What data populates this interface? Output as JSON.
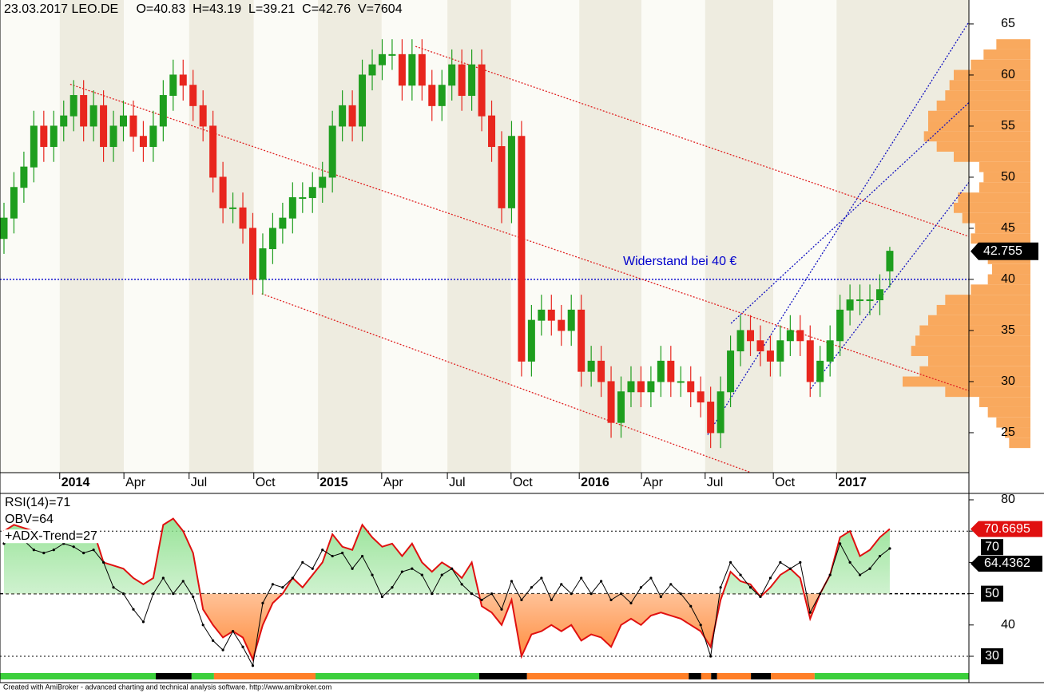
{
  "chart_data": [
    {
      "type": "candlestick",
      "title": "23.03.2017 LEO.DE     O=40.83  H=43.19  L=39.21  C=42.76  V=7604",
      "x": [
        0,
        2,
        4,
        6,
        8,
        10,
        12,
        14,
        16,
        18,
        20,
        22,
        24,
        26,
        28,
        30,
        32,
        34,
        36,
        38,
        40,
        42,
        44,
        46,
        48,
        50,
        52,
        54,
        56,
        58,
        60,
        62,
        64,
        66,
        68,
        70,
        72,
        74,
        76,
        78,
        80,
        82,
        84,
        86,
        88,
        90,
        92,
        94,
        96,
        98,
        100,
        102,
        104,
        106,
        108,
        110,
        112,
        114,
        116,
        118,
        120,
        122,
        124,
        126,
        128,
        130,
        132,
        134,
        136,
        138,
        140,
        142,
        144,
        146,
        148,
        150,
        152,
        154,
        156,
        158,
        160,
        162,
        164,
        166,
        168,
        170,
        172,
        174,
        176,
        178
      ],
      "open": [
        44,
        46,
        49,
        51,
        55,
        53,
        55,
        56,
        58,
        55,
        57,
        53,
        55,
        56,
        54,
        53,
        55,
        58,
        60,
        59,
        57,
        55,
        50,
        47,
        47,
        45,
        40,
        43,
        45,
        46,
        48,
        48,
        49,
        50,
        55,
        57,
        55,
        60,
        61,
        62,
        62,
        59,
        62,
        59,
        57,
        59,
        61,
        58,
        61,
        56,
        53,
        47,
        54,
        32,
        36,
        37,
        36,
        35,
        37,
        31,
        32,
        30,
        26,
        29,
        30,
        29,
        30,
        32,
        30,
        30,
        29,
        28,
        25,
        29,
        33,
        35,
        34,
        33,
        32,
        34,
        35,
        34,
        30,
        32,
        34,
        37,
        38,
        38,
        38,
        40.83
      ],
      "high": [
        47.5,
        50.5,
        52.5,
        56.5,
        56.5,
        56.5,
        57.5,
        59.5,
        59.5,
        58.5,
        58.5,
        56.5,
        57.5,
        57.5,
        55.5,
        56.5,
        59.5,
        61.5,
        61.5,
        60.5,
        58.5,
        56.5,
        51.5,
        48.5,
        48.5,
        46.5,
        44.5,
        46.5,
        47.5,
        49.5,
        49.5,
        50.5,
        51.5,
        56.5,
        58.5,
        58.5,
        61.5,
        62.5,
        63.5,
        63.5,
        63.5,
        63.5,
        63.5,
        60.5,
        60.5,
        62.5,
        62.5,
        62.5,
        62.5,
        57.5,
        54.5,
        55.5,
        55.5,
        37.5,
        38.5,
        38.5,
        37.5,
        38.5,
        38.5,
        33.5,
        33.5,
        31.5,
        30.5,
        31.5,
        31.5,
        31.5,
        33.5,
        33.5,
        31.5,
        31.5,
        30.5,
        29.5,
        30.5,
        34.5,
        36.5,
        36.5,
        35.5,
        34.5,
        35.5,
        36.5,
        36.5,
        35.5,
        33.5,
        35.5,
        38.5,
        39.5,
        39.5,
        39.5,
        40.5,
        43.19
      ],
      "low": [
        42.5,
        44.5,
        47.5,
        49.5,
        51.5,
        51.5,
        53.5,
        54.5,
        53.5,
        53.5,
        51.5,
        51.5,
        53.5,
        52.5,
        51.5,
        51.5,
        53.5,
        56.5,
        57.5,
        55.5,
        53.5,
        48.5,
        45.5,
        45.5,
        43.5,
        38.5,
        38.5,
        41.5,
        43.5,
        44.5,
        46.5,
        46.5,
        47.5,
        48.5,
        53.5,
        53.5,
        53.5,
        58.5,
        59.5,
        60.5,
        57.5,
        57.5,
        57.5,
        55.5,
        55.5,
        57.5,
        56.5,
        56.5,
        54.5,
        51.5,
        45.5,
        45.5,
        30.5,
        30.5,
        34.5,
        34.5,
        33.5,
        33.5,
        29.5,
        29.5,
        28.5,
        24.5,
        24.5,
        27.5,
        27.5,
        27.5,
        28.5,
        28.5,
        28.5,
        27.5,
        26.5,
        23.5,
        23.5,
        27.5,
        31.5,
        32.5,
        31.5,
        30.5,
        30.5,
        32.5,
        32.5,
        28.5,
        28.5,
        30.5,
        32.5,
        35.5,
        36.5,
        36.5,
        36.5,
        39.21
      ],
      "close": [
        46,
        49,
        51,
        55,
        53,
        55,
        56,
        58,
        55,
        57,
        53,
        55,
        56,
        54,
        53,
        55,
        58,
        60,
        59,
        57,
        55,
        50,
        47,
        47,
        45,
        40,
        43,
        45,
        46,
        48,
        48,
        49,
        50,
        55,
        57,
        55,
        60,
        61,
        62,
        62,
        59,
        62,
        59,
        57,
        59,
        61,
        58,
        61,
        56,
        53,
        47,
        54,
        32,
        36,
        37,
        36,
        35,
        37,
        31,
        32,
        30,
        26,
        29,
        30,
        29,
        30,
        32,
        30,
        30,
        29,
        28,
        25,
        29,
        33,
        35,
        34,
        33,
        32,
        34,
        35,
        34,
        30,
        32,
        34,
        37,
        38,
        38,
        38,
        39,
        42.76
      ],
      "up_color": "#1e9e1e",
      "down_color": "#e8261e",
      "xlim": [
        -0.8,
        193.9
      ],
      "ylim": [
        21.09,
        67.34
      ],
      "xticks": [
        {
          "value": 11.2,
          "label": "2014"
        },
        {
          "value": 24.1,
          "label": "Apr"
        },
        {
          "value": 37.2,
          "label": "Jul"
        },
        {
          "value": 50.2,
          "label": "Oct"
        },
        {
          "value": 63.1,
          "label": "2015"
        },
        {
          "value": 75.9,
          "label": "Apr"
        },
        {
          "value": 89.1,
          "label": "Jul"
        },
        {
          "value": 101.9,
          "label": "Oct"
        },
        {
          "value": 115.6,
          "label": "2016"
        },
        {
          "value": 128.1,
          "label": "Apr"
        },
        {
          "value": 140.9,
          "label": "Jul"
        },
        {
          "value": 154.6,
          "label": "Oct"
        },
        {
          "value": 167.3,
          "label": "2017"
        }
      ],
      "bold_xticks": [
        0,
        4,
        8,
        12
      ],
      "yticks": [
        25,
        30,
        35,
        40,
        45,
        50,
        55,
        60,
        65
      ],
      "last_value": 42.755,
      "hlines": [
        {
          "value": 40,
          "color": "#0000cc"
        }
      ],
      "annotation": "Widerstand bei 40 €",
      "trend_lines": [
        {
          "x": [
            13.3,
            193.9
          ],
          "y": [
            59.1,
            29.1
          ],
          "color": "#e02020"
        },
        {
          "x": [
            82.7,
            193.9
          ],
          "y": [
            62.8,
            44.2
          ],
          "color": "#e02020"
        },
        {
          "x": [
            51.8,
            150.1
          ],
          "y": [
            38.6,
            21.1
          ],
          "color": "#e02020"
        },
        {
          "x": [
            141.4,
            193.9
          ],
          "y": [
            24.8,
            65.2
          ],
          "color": "#1010c0"
        },
        {
          "x": [
            146.1,
            193.9
          ],
          "y": [
            35.7,
            57.3
          ],
          "color": "#1010c0"
        },
        {
          "x": [
            162.1,
            193.9
          ],
          "y": [
            29.3,
            49.5
          ],
          "color": "#1010c0"
        }
      ],
      "volume_profile": {
        "color": "#f9a95e",
        "prices": [
          24,
          25,
          26,
          27,
          28,
          29,
          30,
          31,
          32,
          33,
          34,
          35,
          36,
          37,
          38,
          39,
          40,
          41,
          42,
          43,
          44,
          45,
          46,
          47,
          48,
          49,
          50,
          51,
          52,
          53,
          54,
          55,
          56,
          57,
          58,
          59,
          60,
          61,
          62,
          63
        ],
        "values": [
          25,
          30,
          40,
          50,
          60,
          100,
          150,
          130,
          120,
          140,
          135,
          130,
          120,
          110,
          100,
          70,
          50,
          45,
          50,
          60,
          70,
          65,
          80,
          90,
          85,
          60,
          55,
          60,
          90,
          110,
          125,
          120,
          120,
          110,
          100,
          95,
          90,
          70,
          55,
          40
        ]
      }
    },
    {
      "type": "line",
      "legend": [
        "RSI(14)=71",
        "OBV=64",
        "+ADX-Trend=27"
      ],
      "x": [
        0,
        2,
        4,
        6,
        8,
        10,
        12,
        14,
        16,
        18,
        20,
        22,
        24,
        26,
        28,
        30,
        32,
        34,
        36,
        38,
        40,
        42,
        44,
        46,
        48,
        50,
        52,
        54,
        56,
        58,
        60,
        62,
        64,
        66,
        68,
        70,
        72,
        74,
        76,
        78,
        80,
        82,
        84,
        86,
        88,
        90,
        92,
        94,
        96,
        98,
        100,
        102,
        104,
        106,
        108,
        110,
        112,
        114,
        116,
        118,
        120,
        122,
        124,
        126,
        128,
        130,
        132,
        134,
        136,
        138,
        140,
        142,
        144,
        146,
        148,
        150,
        152,
        154,
        156,
        158,
        160,
        162,
        164,
        166,
        168,
        170,
        172,
        174,
        176,
        178
      ],
      "series": [
        {
          "name": "RSI",
          "color": "#e01010",
          "last_value": 70.6695,
          "values": [
            70,
            72,
            71,
            70,
            69,
            68,
            68,
            67,
            70,
            70,
            60,
            59,
            58,
            55,
            53,
            55,
            72,
            74,
            70,
            63,
            45,
            40,
            36,
            38,
            36,
            29,
            40,
            47,
            50,
            55,
            52,
            56,
            60,
            69,
            65,
            64,
            72,
            68,
            65,
            66,
            62,
            66,
            60,
            57,
            60,
            58,
            55,
            60,
            46,
            44,
            40,
            48,
            30,
            37,
            38,
            40,
            38,
            40,
            35,
            37,
            36,
            33,
            40,
            42,
            40,
            43,
            44,
            43,
            42,
            40,
            38,
            33,
            48,
            57,
            54,
            53,
            49,
            52,
            56,
            58,
            55,
            42,
            50,
            56,
            68,
            70,
            62,
            64,
            68,
            70.67
          ]
        },
        {
          "name": "OBV",
          "color": "#000000",
          "last_value": 64.4362,
          "values": [
            66,
            68,
            67,
            64,
            63,
            64,
            66,
            65,
            63,
            64,
            60,
            52,
            50,
            45,
            41,
            50,
            55,
            50,
            54,
            49,
            40,
            35,
            32,
            38,
            33,
            27,
            47,
            53,
            52,
            55,
            60,
            58,
            64,
            62,
            63,
            58,
            62,
            56,
            49,
            52,
            57,
            58,
            56,
            50,
            56,
            58,
            53,
            50,
            48,
            50,
            45,
            54,
            48,
            52,
            55,
            48,
            53,
            50,
            55,
            50,
            54,
            48,
            50,
            47,
            52,
            55,
            49,
            53,
            50,
            46,
            40,
            30,
            52,
            60,
            56,
            52,
            49,
            55,
            60,
            58,
            60,
            44,
            50,
            56,
            66,
            60,
            56,
            58,
            62,
            64.44
          ]
        }
      ],
      "fill_base": 50,
      "fill_colors": [
        "#9be89b",
        "#ff9a55"
      ],
      "xlim": [
        -0.8,
        193.9
      ],
      "ylim": [
        21.58,
        82.04
      ],
      "yticks": [
        30,
        40,
        50,
        60,
        70,
        80
      ],
      "boxed_yticks": [
        0,
        2,
        4
      ],
      "ref_lines": [
        70,
        50,
        30
      ],
      "adx_trend": [
        {
          "start": -0.8,
          "end": 30.5,
          "color": "#3ccf3c"
        },
        {
          "start": 30.5,
          "end": 37.7,
          "color": "#000000"
        },
        {
          "start": 37.7,
          "end": 42.2,
          "color": "#3ccf3c"
        },
        {
          "start": 42.2,
          "end": 62.6,
          "color": "#ff7f27"
        },
        {
          "start": 62.6,
          "end": 95.5,
          "color": "#3ccf3c"
        },
        {
          "start": 95.5,
          "end": 105.1,
          "color": "#000000"
        },
        {
          "start": 105.1,
          "end": 137.6,
          "color": "#ff7f27"
        },
        {
          "start": 137.6,
          "end": 140.1,
          "color": "#000000"
        },
        {
          "start": 140.1,
          "end": 142.1,
          "color": "#ff7f27"
        },
        {
          "start": 142.1,
          "end": 143.3,
          "color": "#000000"
        },
        {
          "start": 143.3,
          "end": 150.1,
          "color": "#ff7f27"
        },
        {
          "start": 150.1,
          "end": 154.1,
          "color": "#000000"
        },
        {
          "start": 154.1,
          "end": 162.9,
          "color": "#ff7f27"
        },
        {
          "start": 162.9,
          "end": 193.9,
          "color": "#3ccf3c"
        }
      ]
    }
  ],
  "footer": "Created with AmiBroker - advanced charting and technical analysis software. http://www.amibroker.com"
}
